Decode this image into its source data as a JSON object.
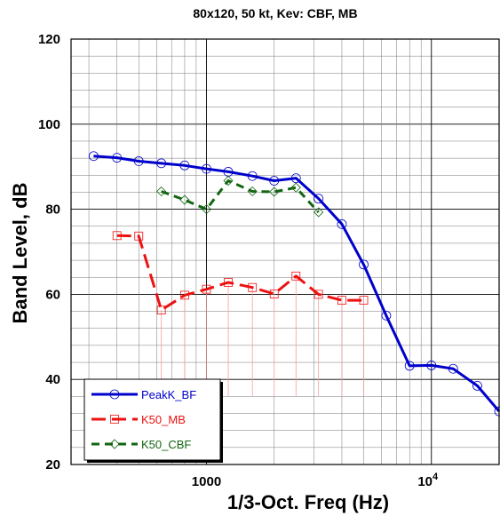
{
  "chart_data": {
    "type": "line",
    "title": "80x120, 50 kt, Kev:  CBF, MB",
    "xlabel": "1/3-Oct. Freq (Hz)",
    "ylabel": "Band Level, dB",
    "xscale": "log",
    "xlim": [
      250,
      20000
    ],
    "ylim": [
      20,
      120
    ],
    "yticks": [
      20,
      40,
      60,
      80,
      100,
      120
    ],
    "xticks": [
      {
        "value": 1000,
        "label": "1000"
      },
      {
        "value": 10000,
        "label": "10",
        "sup": "4"
      }
    ],
    "grid": true,
    "legend_position": "bottom-left",
    "series": [
      {
        "name": "PeakK_BF",
        "color": "#0000cc",
        "marker": "circle",
        "dash": "solid",
        "x": [
          315,
          400,
          500,
          630,
          800,
          1000,
          1250,
          1600,
          2000,
          2500,
          3150,
          4000,
          5000,
          6300,
          8000,
          10000,
          12500,
          16000,
          20000
        ],
        "y": [
          92.5,
          92.1,
          91.3,
          90.8,
          90.3,
          89.5,
          88.8,
          87.8,
          86.7,
          87.3,
          82.5,
          76.5,
          67,
          55,
          43.2,
          43.3,
          42.5,
          38.5,
          32.5
        ]
      },
      {
        "name": "K50_MB",
        "color": "#ee1111",
        "marker": "square",
        "dash": "long-dash",
        "x": [
          400,
          500,
          630,
          800,
          1000,
          1250,
          1600,
          2000,
          2500,
          3150,
          4000,
          5000
        ],
        "y": [
          73.8,
          73.7,
          56.3,
          59.8,
          61.2,
          62.8,
          61.6,
          60.1,
          64.3,
          60,
          58.6,
          58.6
        ]
      },
      {
        "name": "K50_CBF",
        "color": "#116611",
        "marker": "diamond",
        "dash": "dash",
        "x": [
          630,
          800,
          1000,
          1250,
          1600,
          2000,
          2500,
          3150
        ],
        "y": [
          84.2,
          82.2,
          80,
          86.7,
          84.2,
          84.1,
          85.1,
          79.3
        ]
      }
    ]
  }
}
